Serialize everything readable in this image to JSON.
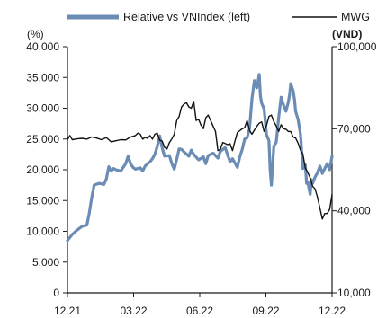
{
  "chart_data": {
    "type": "line",
    "x_ticks": [
      "12.21",
      "03.22",
      "06.22",
      "09.22",
      "12.22"
    ],
    "y_left": {
      "unit": "(%)",
      "ticks": [
        "0",
        "5,000",
        "10,000",
        "15,000",
        "20,000",
        "25,000",
        "30,000",
        "35,000",
        "40,000"
      ],
      "range": [
        0,
        40000
      ]
    },
    "y_right": {
      "unit": "(VND)",
      "ticks": [
        "10,000",
        "40,000",
        "70,000",
        "100,000"
      ],
      "range": [
        10000,
        100000
      ]
    },
    "legend_position": "top",
    "series": [
      {
        "name": "Relative vs VNIndex (left)",
        "axis": "left",
        "color": "#6a8cb5",
        "points": [
          [
            0,
            8500
          ],
          [
            0.02,
            9500
          ],
          [
            0.04,
            10200
          ],
          [
            0.06,
            10800
          ],
          [
            0.08,
            11000
          ],
          [
            0.09,
            13000
          ],
          [
            0.1,
            15500
          ],
          [
            0.11,
            17500
          ],
          [
            0.13,
            17800
          ],
          [
            0.15,
            17600
          ],
          [
            0.16,
            18500
          ],
          [
            0.17,
            20500
          ],
          [
            0.18,
            19800
          ],
          [
            0.19,
            20200
          ],
          [
            0.2,
            20000
          ],
          [
            0.22,
            19800
          ],
          [
            0.24,
            21000
          ],
          [
            0.25,
            22200
          ],
          [
            0.26,
            21000
          ],
          [
            0.27,
            20400
          ],
          [
            0.28,
            20100
          ],
          [
            0.3,
            20300
          ],
          [
            0.31,
            19800
          ],
          [
            0.32,
            20600
          ],
          [
            0.33,
            21000
          ],
          [
            0.34,
            21300
          ],
          [
            0.35,
            21800
          ],
          [
            0.36,
            22500
          ],
          [
            0.37,
            23800
          ],
          [
            0.38,
            25500
          ],
          [
            0.39,
            23600
          ],
          [
            0.4,
            22200
          ],
          [
            0.42,
            22300
          ],
          [
            0.43,
            21000
          ],
          [
            0.44,
            20100
          ],
          [
            0.45,
            21700
          ],
          [
            0.46,
            23400
          ],
          [
            0.47,
            23300
          ],
          [
            0.48,
            22900
          ],
          [
            0.5,
            22200
          ],
          [
            0.51,
            23200
          ],
          [
            0.52,
            22500
          ],
          [
            0.54,
            21600
          ],
          [
            0.56,
            22100
          ],
          [
            0.57,
            21000
          ],
          [
            0.58,
            22300
          ],
          [
            0.6,
            22700
          ],
          [
            0.62,
            21900
          ],
          [
            0.63,
            23000
          ],
          [
            0.65,
            23600
          ],
          [
            0.66,
            22400
          ],
          [
            0.67,
            21300
          ],
          [
            0.68,
            21800
          ],
          [
            0.7,
            20400
          ],
          [
            0.71,
            22100
          ],
          [
            0.72,
            23300
          ],
          [
            0.73,
            25000
          ],
          [
            0.74,
            25200
          ],
          [
            0.75,
            26700
          ],
          [
            0.76,
            31500
          ],
          [
            0.77,
            34500
          ],
          [
            0.78,
            33300
          ],
          [
            0.79,
            35500
          ],
          [
            0.795,
            32000
          ],
          [
            0.8,
            30800
          ],
          [
            0.81,
            29900
          ],
          [
            0.82,
            25700
          ],
          [
            0.83,
            24700
          ],
          [
            0.835,
            20000
          ],
          [
            0.84,
            17500
          ],
          [
            0.85,
            23800
          ],
          [
            0.86,
            24500
          ],
          [
            0.87,
            28500
          ],
          [
            0.88,
            31800
          ],
          [
            0.89,
            30500
          ],
          [
            0.9,
            29500
          ],
          [
            0.91,
            31000
          ],
          [
            0.915,
            32200
          ],
          [
            0.92,
            34000
          ],
          [
            0.93,
            32800
          ],
          [
            0.935,
            31500
          ],
          [
            0.94,
            29500
          ],
          [
            0.95,
            28200
          ],
          [
            0.96,
            25800
          ],
          [
            0.965,
            23000
          ],
          [
            0.97,
            20200
          ],
          [
            0.975,
            21000
          ],
          [
            0.98,
            20800
          ],
          [
            0.985,
            17800
          ],
          [
            0.99,
            18000
          ],
          [
            1.0,
            16000
          ],
          [
            1.005,
            18400
          ],
          [
            1.01,
            17800
          ],
          [
            1.02,
            18800
          ],
          [
            1.03,
            19500
          ],
          [
            1.04,
            20600
          ],
          [
            1.05,
            19400
          ],
          [
            1.06,
            20200
          ],
          [
            1.07,
            21000
          ],
          [
            1.08,
            20000
          ],
          [
            1.09,
            22200
          ]
        ]
      },
      {
        "name": "MWG",
        "axis": "right",
        "color": "#111111",
        "points": [
          [
            0,
            66000
          ],
          [
            0.01,
            67500
          ],
          [
            0.02,
            66000
          ],
          [
            0.04,
            66300
          ],
          [
            0.06,
            66500
          ],
          [
            0.08,
            66200
          ],
          [
            0.1,
            67000
          ],
          [
            0.12,
            66600
          ],
          [
            0.14,
            66000
          ],
          [
            0.16,
            66800
          ],
          [
            0.18,
            65200
          ],
          [
            0.2,
            65600
          ],
          [
            0.22,
            66000
          ],
          [
            0.24,
            65900
          ],
          [
            0.26,
            67000
          ],
          [
            0.28,
            67500
          ],
          [
            0.29,
            68400
          ],
          [
            0.3,
            68000
          ],
          [
            0.31,
            66200
          ],
          [
            0.32,
            66900
          ],
          [
            0.33,
            66500
          ],
          [
            0.34,
            67500
          ],
          [
            0.35,
            66200
          ],
          [
            0.36,
            68000
          ],
          [
            0.37,
            68400
          ],
          [
            0.38,
            65800
          ],
          [
            0.39,
            65500
          ],
          [
            0.4,
            63200
          ],
          [
            0.41,
            62600
          ],
          [
            0.42,
            65000
          ],
          [
            0.43,
            66300
          ],
          [
            0.44,
            68000
          ],
          [
            0.45,
            73000
          ],
          [
            0.46,
            74500
          ],
          [
            0.47,
            78000
          ],
          [
            0.48,
            79000
          ],
          [
            0.49,
            79500
          ],
          [
            0.5,
            78000
          ],
          [
            0.51,
            77500
          ],
          [
            0.52,
            80000
          ],
          [
            0.53,
            73000
          ],
          [
            0.54,
            73500
          ],
          [
            0.55,
            71400
          ],
          [
            0.56,
            70000
          ],
          [
            0.57,
            74000
          ],
          [
            0.58,
            75000
          ],
          [
            0.59,
            73000
          ],
          [
            0.6,
            71000
          ],
          [
            0.61,
            69000
          ],
          [
            0.62,
            62000
          ],
          [
            0.63,
            62500
          ],
          [
            0.64,
            65000
          ],
          [
            0.66,
            64200
          ],
          [
            0.67,
            64500
          ],
          [
            0.68,
            62000
          ],
          [
            0.69,
            65500
          ],
          [
            0.7,
            68600
          ],
          [
            0.71,
            69300
          ],
          [
            0.72,
            70000
          ],
          [
            0.73,
            70400
          ],
          [
            0.74,
            73000
          ],
          [
            0.75,
            69400
          ],
          [
            0.76,
            68000
          ],
          [
            0.77,
            69500
          ],
          [
            0.78,
            70900
          ],
          [
            0.79,
            72000
          ],
          [
            0.8,
            72500
          ],
          [
            0.81,
            69000
          ],
          [
            0.82,
            71300
          ],
          [
            0.83,
            74500
          ],
          [
            0.84,
            75000
          ],
          [
            0.85,
            72600
          ],
          [
            0.86,
            71000
          ],
          [
            0.87,
            69000
          ],
          [
            0.88,
            71500
          ],
          [
            0.89,
            70000
          ],
          [
            0.9,
            69800
          ],
          [
            0.91,
            69000
          ],
          [
            0.92,
            69000
          ],
          [
            0.93,
            67000
          ],
          [
            0.94,
            66600
          ],
          [
            0.95,
            64800
          ],
          [
            0.96,
            62200
          ],
          [
            0.97,
            60700
          ],
          [
            0.98,
            55600
          ],
          [
            0.99,
            54000
          ],
          [
            1.0,
            52000
          ],
          [
            1.01,
            49000
          ],
          [
            1.02,
            48000
          ],
          [
            1.03,
            45000
          ],
          [
            1.04,
            41000
          ],
          [
            1.05,
            37000
          ],
          [
            1.06,
            39000
          ],
          [
            1.07,
            39000
          ],
          [
            1.08,
            40500
          ],
          [
            1.09,
            46000
          ]
        ]
      }
    ]
  }
}
